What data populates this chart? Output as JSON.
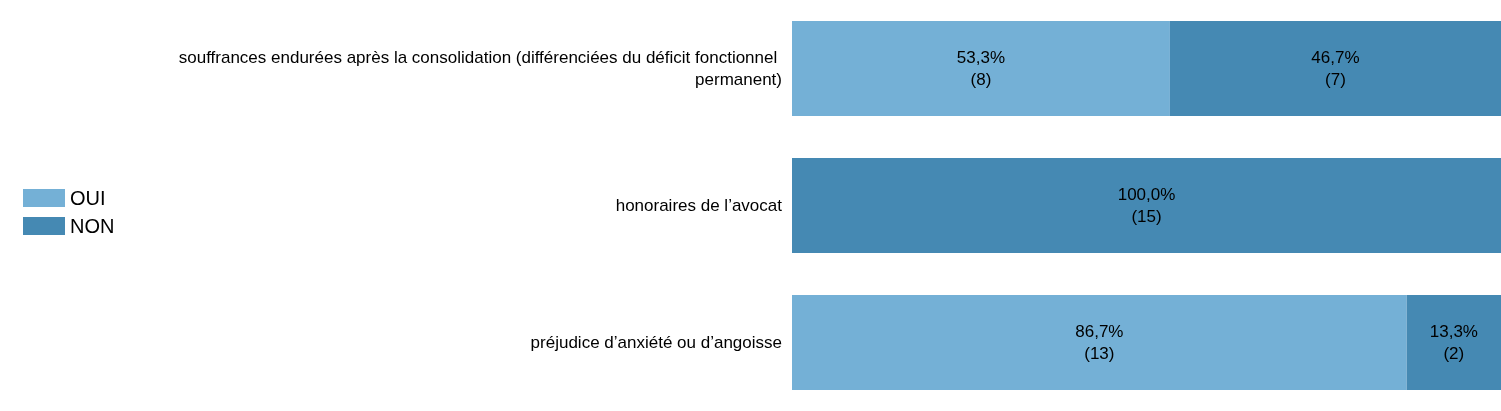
{
  "chart_data": {
    "type": "bar",
    "orientation": "horizontal",
    "stacked": true,
    "legend": "left",
    "tick_labels": "y",
    "grid": false,
    "categories": [
      "souffrances endurées après la consolidation (différenciées du déficit fonctionnel permanent)",
      "honoraires de l’avocat",
      "préjudice d’anxiété ou d’angoisse"
    ],
    "xlim": [
      0,
      100
    ],
    "series": [
      {
        "name": "OUI",
        "color": "#74b0d6",
        "values": [
          53.3,
          0,
          86.7
        ],
        "value_labels": [
          "53,3%\n(8)",
          null,
          "86,7%\n(13)"
        ]
      },
      {
        "name": "NON",
        "color": "#4589b3",
        "values": [
          46.7,
          100,
          13.3
        ],
        "value_labels": [
          "46,7%\n(7)",
          "100,0%\n(15)",
          "13,3%\n(2)"
        ]
      }
    ]
  }
}
